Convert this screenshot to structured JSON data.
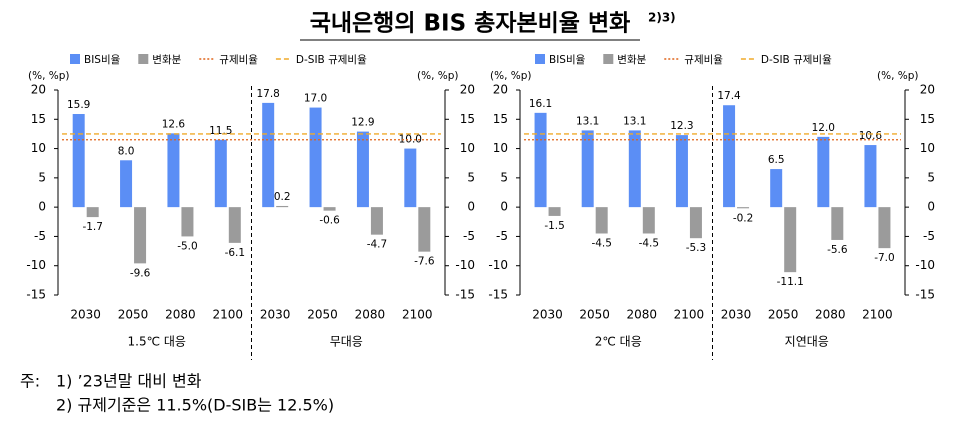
{
  "title": "국내은행의 BIS 총자본비율 변화",
  "title_note": "2)3)",
  "chart_data": [
    {
      "type": "bar",
      "unit_label": "(%, %p)",
      "groups": [
        {
          "label": "1.5℃ 대응",
          "categories": [
            "2030",
            "2050",
            "2080",
            "2100"
          ]
        },
        {
          "label": "무대응",
          "categories": [
            "2030",
            "2050",
            "2080",
            "2100"
          ]
        }
      ],
      "series": [
        {
          "name": "BIS비율",
          "color": "#5b8ef5",
          "values": [
            15.9,
            8.0,
            12.6,
            11.5,
            17.8,
            17.0,
            12.9,
            10.0
          ],
          "value_labels": [
            "15.9",
            "8.0",
            "12.6",
            "11.5",
            "17.8",
            "17.0",
            "12.9",
            "10.0"
          ]
        },
        {
          "name": "변화분",
          "color": "#9b9b9b",
          "values": [
            -1.7,
            -9.6,
            -5.0,
            -6.1,
            0.2,
            -0.6,
            -4.7,
            -7.6
          ],
          "value_labels": [
            "-1.7",
            "-9.6",
            "-5.0",
            "-6.1",
            "0.2",
            "-0.6",
            "-4.7",
            "-7.6"
          ]
        }
      ],
      "reference_lines": [
        {
          "name": "규제비율",
          "value": 11.5,
          "color": "#e0641a",
          "style": "dotted"
        },
        {
          "name": "D-SIB 규제비율",
          "value": 12.5,
          "color": "#f0aa2a",
          "style": "dashed"
        }
      ],
      "ylim": [
        -15,
        20
      ],
      "yticks": [
        -15,
        -10,
        -5,
        0,
        5,
        10,
        15,
        20
      ]
    },
    {
      "type": "bar",
      "unit_label": "(%, %p)",
      "groups": [
        {
          "label": "2℃ 대응",
          "categories": [
            "2030",
            "2050",
            "2080",
            "2100"
          ]
        },
        {
          "label": "지연대응",
          "categories": [
            "2030",
            "2050",
            "2080",
            "2100"
          ]
        }
      ],
      "series": [
        {
          "name": "BIS비율",
          "color": "#5b8ef5",
          "values": [
            16.1,
            13.1,
            13.1,
            12.3,
            17.4,
            6.5,
            12.0,
            10.6
          ],
          "value_labels": [
            "16.1",
            "13.1",
            "13.1",
            "12.3",
            "17.4",
            "6.5",
            "12.0",
            "10.6"
          ]
        },
        {
          "name": "변화분",
          "color": "#9b9b9b",
          "values": [
            -1.5,
            -4.5,
            -4.5,
            -5.3,
            -0.2,
            -11.1,
            -5.6,
            -7.0
          ],
          "value_labels": [
            "-1.5",
            "-4.5",
            "-4.5",
            "-5.3",
            "-0.2",
            "-11.1",
            "-5.6",
            "-7.0"
          ]
        }
      ],
      "reference_lines": [
        {
          "name": "규제비율",
          "value": 11.5,
          "color": "#e0641a",
          "style": "dotted"
        },
        {
          "name": "D-SIB 규제비율",
          "value": 12.5,
          "color": "#f0aa2a",
          "style": "dashed"
        }
      ],
      "ylim": [
        -15,
        20
      ],
      "yticks": [
        -15,
        -10,
        -5,
        0,
        5,
        10,
        15,
        20
      ]
    }
  ],
  "notes": {
    "prefix": "주:",
    "items": [
      "1) ’23년말 대비 변화",
      "2) 규제기준은 11.5%(D-SIB는 12.5%)"
    ]
  }
}
